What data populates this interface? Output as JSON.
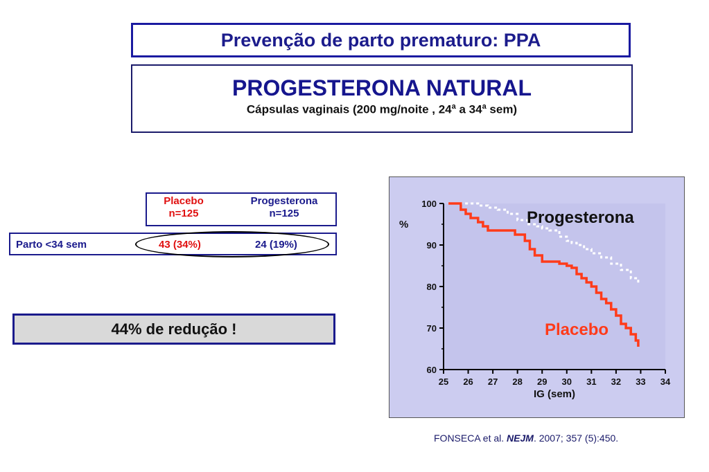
{
  "header": {
    "title": "Prevenção de parto prematuro: PPA",
    "heading": "PROGESTERONA NATURAL",
    "detail_prefix": "Cápsulas vaginais (200 mg/noite , 24",
    "detail_sup1": "a",
    "detail_mid": " a 34",
    "detail_sup2": "a",
    "detail_suffix": " sem)"
  },
  "table": {
    "col1_name": "Placebo",
    "col1_n": "n=125",
    "col2_name": "Progesterona",
    "col2_n": "n=125",
    "row_label": "Parto <34 sem",
    "col1_value": "43 (34%)",
    "col2_value": "24 (19%)"
  },
  "reduction_label": "44% de redução !",
  "citation": {
    "authors": "FONSECA  et al. ",
    "journal": "NEJM",
    "ref": ". 2007; 357 (5):450."
  },
  "colors": {
    "placebo": "#ff3b1a",
    "progesterona": "#ffffff",
    "title_blue": "#1c1c8c",
    "panel_bg": "#ccccf0"
  },
  "chart_data": {
    "type": "line",
    "ylabel": "%",
    "xlabel": "IG (sem)",
    "xlim": [
      25,
      34
    ],
    "ylim": [
      60,
      100
    ],
    "xticks": [
      25,
      26,
      27,
      28,
      29,
      30,
      31,
      32,
      33,
      34
    ],
    "yticks": [
      60,
      70,
      80,
      90,
      100
    ],
    "grid": false,
    "series": [
      {
        "name": "Progesterona",
        "color": "#ffffff",
        "style": "dashed",
        "x": [
          25.2,
          25.8,
          26.4,
          26.8,
          27.2,
          27.6,
          28.0,
          28.4,
          28.8,
          29.0,
          29.3,
          29.7,
          30.0,
          30.2,
          30.4,
          30.7,
          31.0,
          31.4,
          31.8,
          32.2,
          32.6,
          32.9
        ],
        "y": [
          100,
          100,
          99.5,
          99,
          98.5,
          97.5,
          96,
          95,
          94.5,
          94,
          93.5,
          92,
          91,
          90.5,
          90,
          89,
          88,
          87,
          85.5,
          84,
          82,
          80.5
        ]
      },
      {
        "name": "Placebo",
        "color": "#ff3b1a",
        "style": "solid",
        "x": [
          25.2,
          25.5,
          25.7,
          25.9,
          26.1,
          26.4,
          26.6,
          26.8,
          27.0,
          27.4,
          27.6,
          27.9,
          28.1,
          28.3,
          28.5,
          28.7,
          29.0,
          29.3,
          29.7,
          30.0,
          30.2,
          30.4,
          30.6,
          30.8,
          31.0,
          31.2,
          31.4,
          31.6,
          31.8,
          32.0,
          32.2,
          32.4,
          32.6,
          32.8,
          32.9
        ],
        "y": [
          100,
          100,
          98.5,
          97.5,
          96.5,
          95.5,
          94.5,
          93.5,
          93.5,
          93.5,
          93.5,
          92.5,
          92.5,
          91,
          89,
          87.5,
          86,
          86,
          85.5,
          85,
          84.5,
          83,
          82,
          81,
          80,
          78.5,
          77,
          76,
          74.5,
          73,
          71,
          70,
          68.5,
          67,
          65.5
        ]
      }
    ]
  }
}
